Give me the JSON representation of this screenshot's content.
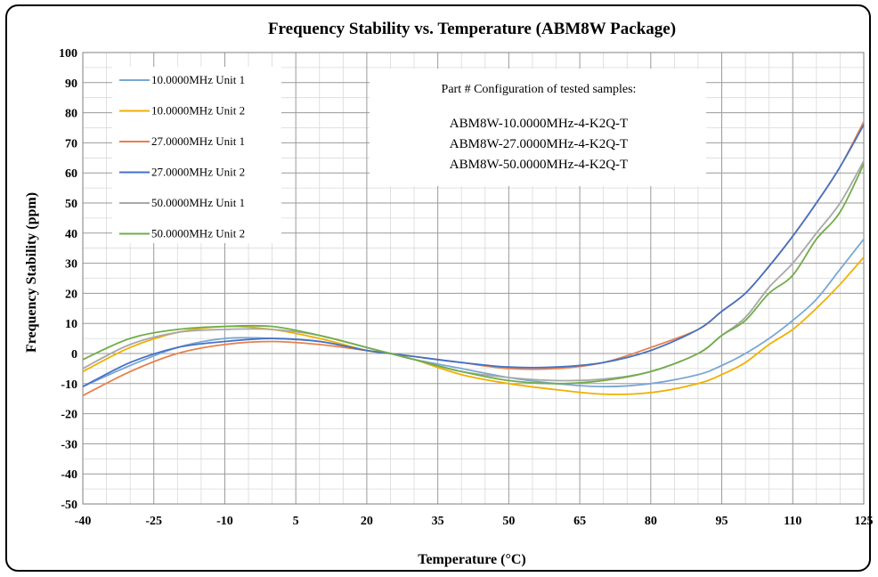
{
  "chart_data": {
    "type": "line",
    "title": "Frequency Stability vs. Temperature (ABM8W Package)",
    "xlabel": "Temperature (°C)",
    "ylabel": "Frequency Stability (ppm)",
    "xlim": [
      -40,
      125
    ],
    "ylim": [
      -50,
      100
    ],
    "x_ticks": [
      -40,
      -25,
      -10,
      5,
      20,
      35,
      50,
      65,
      80,
      95,
      110,
      125
    ],
    "y_ticks": [
      -50,
      -40,
      -30,
      -20,
      -10,
      0,
      10,
      20,
      30,
      40,
      50,
      60,
      70,
      80,
      90,
      100
    ],
    "grid": true,
    "legend_position": "top-left",
    "annotation": {
      "heading": "Part # Configuration of tested samples:",
      "lines": [
        "ABM8W-10.0000MHz-4-K2Q-T",
        "ABM8W-27.0000MHz-4-K2Q-T",
        "ABM8W-50.0000MHz-4-K2Q-T"
      ]
    },
    "x": [
      -40,
      -30,
      -20,
      -10,
      0,
      10,
      20,
      25,
      30,
      40,
      50,
      60,
      70,
      80,
      90,
      95,
      100,
      105,
      110,
      115,
      120,
      125
    ],
    "series": [
      {
        "name": "10.0000MHz Unit 1",
        "color": "#7ba7d4",
        "values": [
          -11,
          -4,
          2,
          5,
          5,
          4,
          1,
          0,
          -2,
          -5,
          -8,
          -10,
          -11,
          -10,
          -7,
          -4,
          0,
          5,
          11,
          18,
          28,
          38
        ]
      },
      {
        "name": "10.0000MHz Unit 2",
        "color": "#f0b000",
        "values": [
          -6,
          2,
          7,
          9,
          8,
          5,
          1,
          0,
          -2,
          -7,
          -10,
          -12,
          -13.5,
          -13,
          -10,
          -7,
          -3,
          3,
          8,
          15,
          23,
          32
        ]
      },
      {
        "name": "27.0000MHz Unit 1",
        "color": "#e8804c",
        "values": [
          -14,
          -6,
          0,
          3,
          4,
          3,
          1,
          0,
          -1,
          -3,
          -5,
          -5,
          -3,
          2,
          8,
          14,
          20,
          29,
          39,
          50,
          62,
          77
        ]
      },
      {
        "name": "27.0000MHz Unit 2",
        "color": "#4472c4",
        "values": [
          -11,
          -3,
          2,
          4,
          5,
          4,
          1,
          0,
          -1,
          -3,
          -4.5,
          -4.5,
          -3,
          1,
          8,
          14,
          20,
          29,
          39,
          50,
          62,
          76
        ]
      },
      {
        "name": "50.0000MHz Unit 1",
        "color": "#a8a8a8",
        "values": [
          -5,
          3,
          7,
          8,
          8,
          6,
          2,
          0,
          -2,
          -6,
          -8,
          -9,
          -8.5,
          -6,
          0,
          6,
          12,
          22,
          30,
          40,
          50,
          64
        ]
      },
      {
        "name": "50.0000MHz Unit 2",
        "color": "#70ad47",
        "values": [
          -2,
          5,
          8,
          9,
          9,
          6,
          2,
          0,
          -2,
          -6,
          -9,
          -10,
          -9,
          -6,
          0,
          6,
          11,
          20,
          26,
          38,
          47,
          63
        ]
      }
    ]
  }
}
